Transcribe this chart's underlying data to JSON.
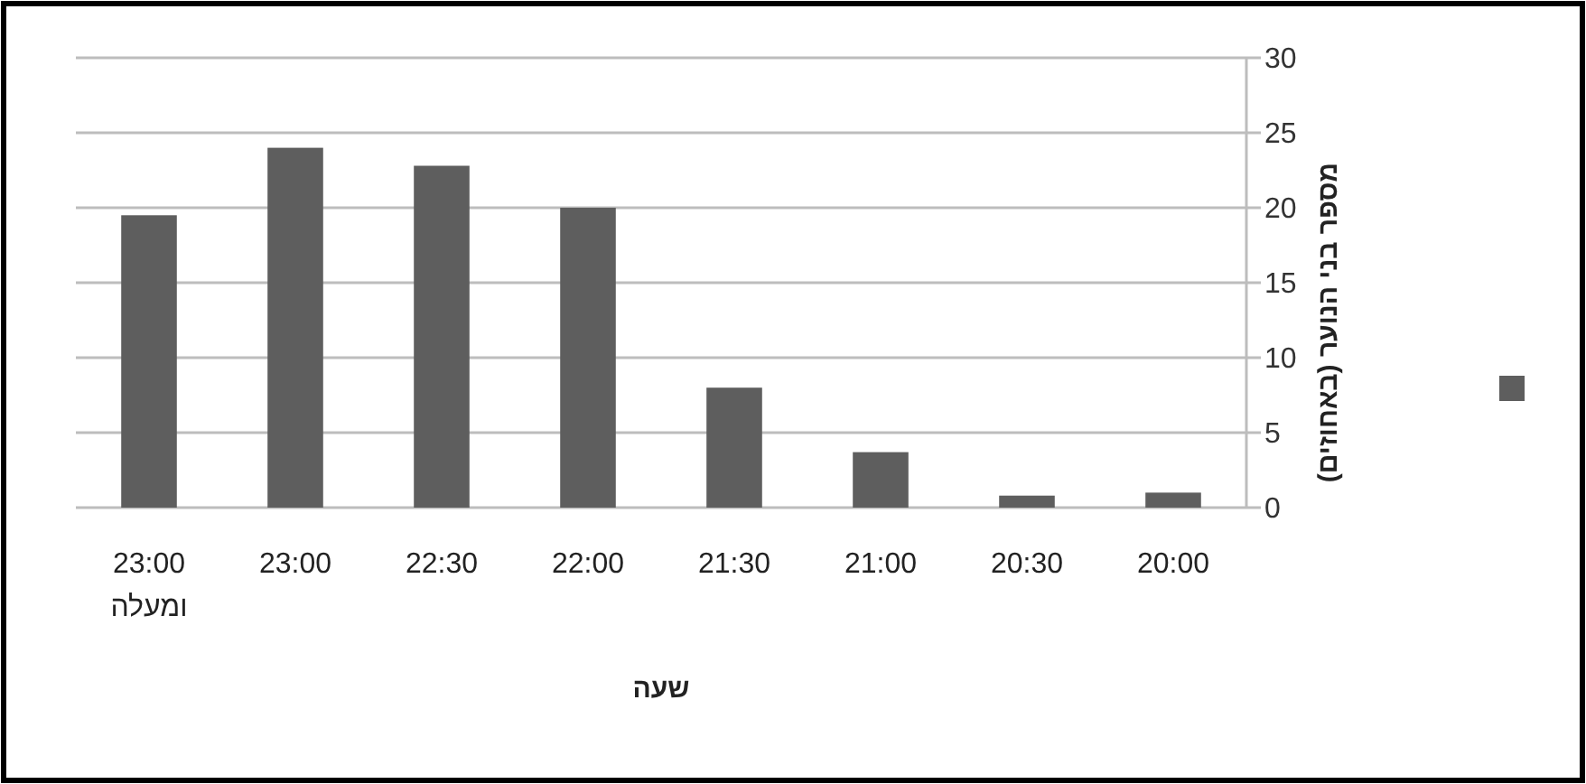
{
  "chart_data": {
    "type": "bar",
    "xlabel": "שעה",
    "ylabel": "מספר בני הנוער (באחוזים)",
    "categories": [
      "23:00 ומעלה",
      "23:00",
      "22:30",
      "22:00",
      "21:30",
      "21:00",
      "20:30",
      "20:00"
    ],
    "series": [
      {
        "color": "#5e5e5e",
        "values": [
          19.5,
          24,
          22.8,
          20,
          8,
          3.7,
          0.8,
          1.0
        ]
      }
    ],
    "ylim": [
      0,
      30
    ],
    "yticks": [
      0,
      5,
      10,
      15,
      20,
      25,
      30
    ],
    "grid": "y"
  }
}
